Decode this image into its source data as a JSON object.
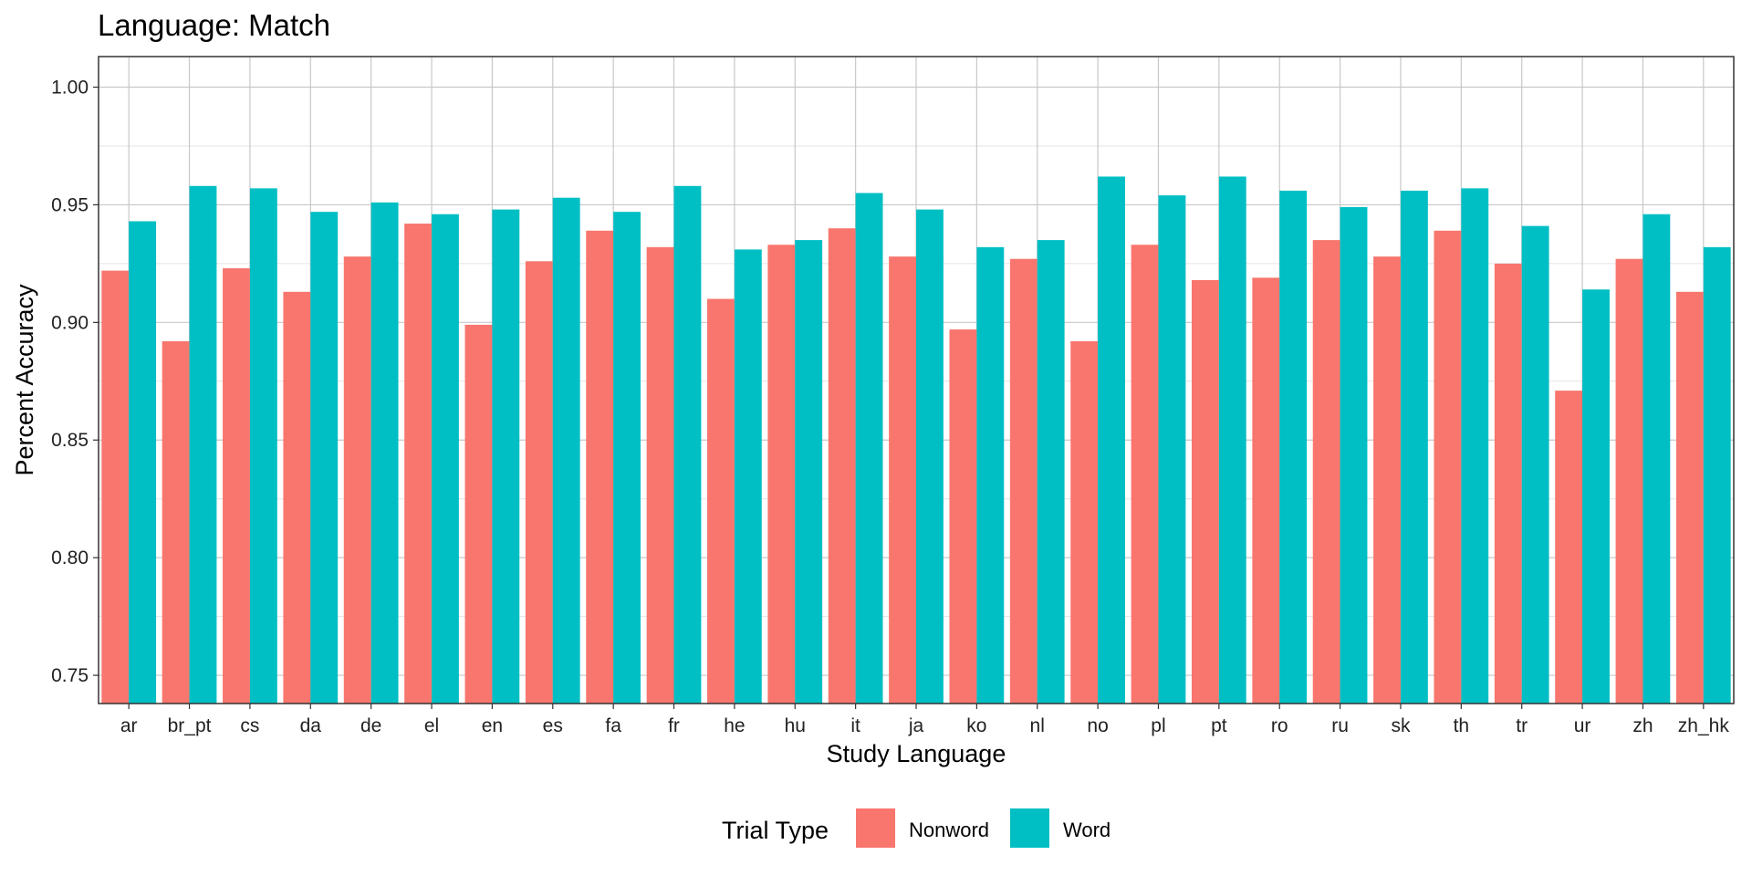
{
  "chart_data": {
    "type": "bar",
    "title": "Language: Match",
    "xlabel": "Study Language",
    "ylabel": "Percent Accuracy",
    "ylim": [
      0.738,
      1.013
    ],
    "yticks": [
      0.75,
      0.8,
      0.85,
      0.9,
      0.95,
      1.0
    ],
    "ytick_labels": [
      "0.75",
      "0.80",
      "0.85",
      "0.90",
      "0.95",
      "1.00"
    ],
    "grid": true,
    "legend": {
      "title": "Trial Type",
      "position": "bottom"
    },
    "categories": [
      "ar",
      "br_pt",
      "cs",
      "da",
      "de",
      "el",
      "en",
      "es",
      "fa",
      "fr",
      "he",
      "hu",
      "it",
      "ja",
      "ko",
      "nl",
      "no",
      "pl",
      "pt",
      "ro",
      "ru",
      "sk",
      "th",
      "tr",
      "ur",
      "zh",
      "zh_hk"
    ],
    "series": [
      {
        "name": "Nonword",
        "color": "#F8766D",
        "values": [
          0.922,
          0.892,
          0.923,
          0.913,
          0.928,
          0.942,
          0.899,
          0.926,
          0.939,
          0.932,
          0.91,
          0.933,
          0.94,
          0.928,
          0.897,
          0.927,
          0.892,
          0.933,
          0.918,
          0.919,
          0.935,
          0.928,
          0.939,
          0.925,
          0.871,
          0.927,
          0.913
        ]
      },
      {
        "name": "Word",
        "color": "#00BFC4",
        "values": [
          0.943,
          0.958,
          0.957,
          0.947,
          0.951,
          0.946,
          0.948,
          0.953,
          0.947,
          0.958,
          0.931,
          0.935,
          0.955,
          0.948,
          0.932,
          0.935,
          0.962,
          0.954,
          0.962,
          0.956,
          0.949,
          0.956,
          0.957,
          0.941,
          0.914,
          0.946,
          0.932
        ]
      }
    ]
  }
}
